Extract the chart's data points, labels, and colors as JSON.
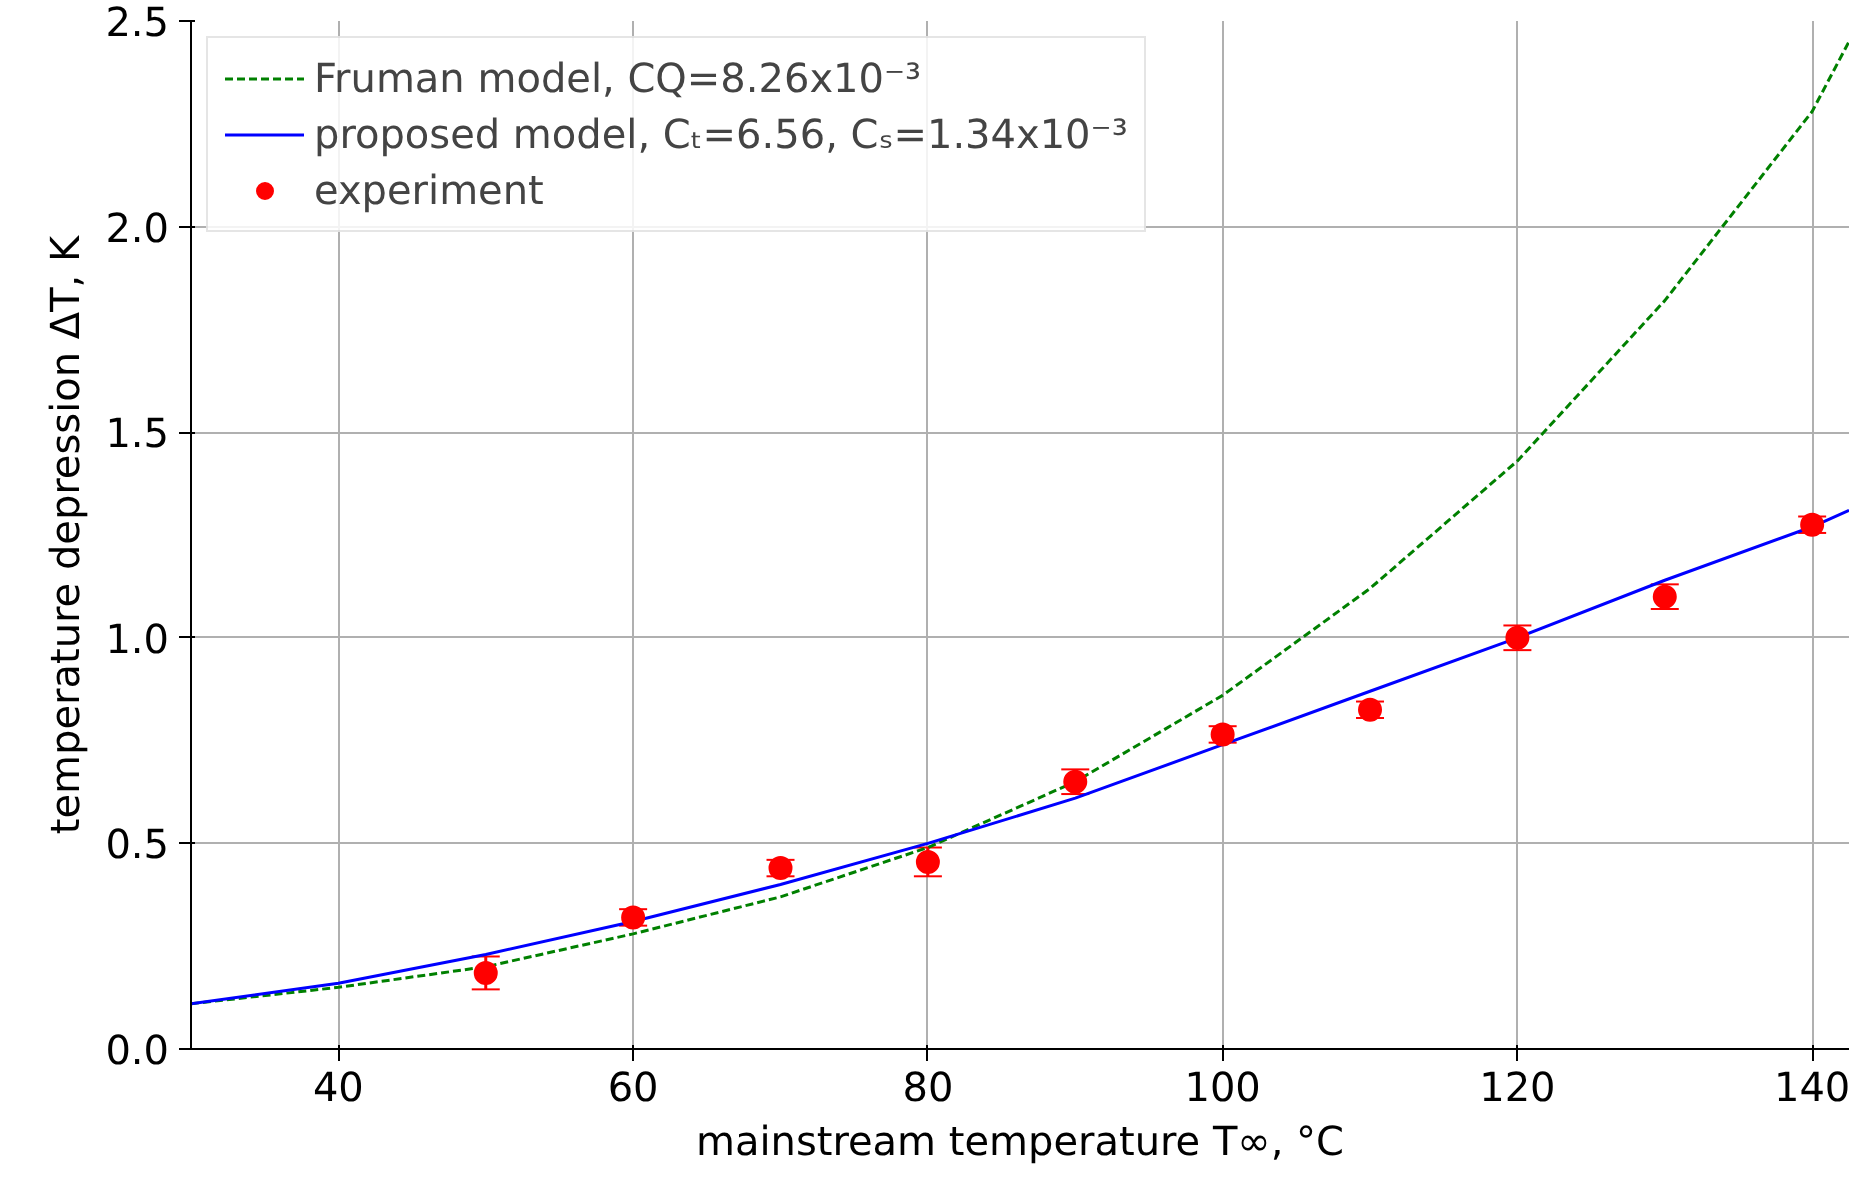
{
  "chart_data": {
    "type": "line",
    "xlabel": "mainstream temperature T∞, °C",
    "ylabel": "temperature depression ΔT, K",
    "xlim": [
      30,
      142.5
    ],
    "ylim": [
      0,
      2.5
    ],
    "xticks": [
      40,
      60,
      80,
      100,
      120,
      140
    ],
    "yticks": [
      {
        "value": 0,
        "label": "0.0"
      },
      0.5,
      {
        "value": 1,
        "label": "1.0"
      },
      1.5,
      {
        "value": 2,
        "label": "2.0"
      },
      2.5
    ],
    "grid": true,
    "legend": "top left",
    "series": [
      {
        "name": "Fruman model, CQ=8.26x10⁻³",
        "color": "#008000",
        "line_style": "dashed",
        "x": [
          30,
          40,
          50,
          60,
          70,
          80,
          90,
          100,
          110,
          120,
          130,
          140,
          142.5
        ],
        "values": [
          0.11,
          0.15,
          0.2,
          0.28,
          0.37,
          0.49,
          0.65,
          0.86,
          1.12,
          1.43,
          1.82,
          2.28,
          2.45
        ]
      },
      {
        "name": "proposed model, Cₜ=6.56, Cₛ=1.34x10⁻³",
        "color": "#0000ff",
        "line_style": "solid",
        "x": [
          30,
          40,
          50,
          60,
          70,
          80,
          90,
          100,
          110,
          120,
          130,
          140,
          142.5
        ],
        "values": [
          0.11,
          0.16,
          0.23,
          0.31,
          0.4,
          0.5,
          0.61,
          0.74,
          0.87,
          1.0,
          1.14,
          1.27,
          1.31
        ]
      },
      {
        "name": "experiment",
        "type": "scatter",
        "color": "#ff0000",
        "marker": "circle",
        "x": [
          50,
          60,
          70,
          80,
          90,
          100,
          110,
          120,
          130,
          140
        ],
        "values": [
          0.185,
          0.32,
          0.44,
          0.455,
          0.65,
          0.765,
          0.825,
          1.0,
          1.1,
          1.275
        ],
        "errors": [
          0.04,
          0.02,
          0.02,
          0.035,
          0.03,
          0.02,
          0.02,
          0.03,
          0.03,
          0.02
        ]
      }
    ]
  }
}
